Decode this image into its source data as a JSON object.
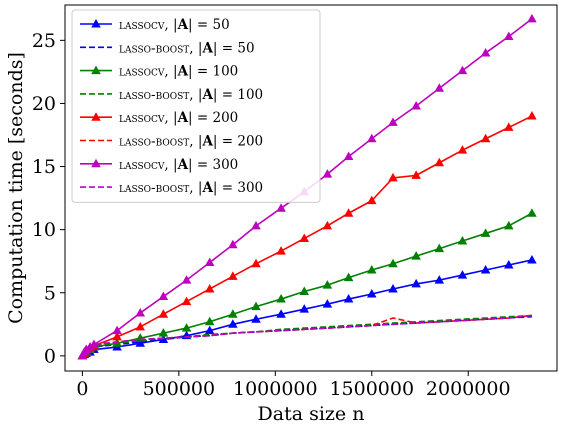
{
  "chart_data": {
    "type": "line",
    "xlabel": "Data size n",
    "ylabel": "Computation time [seconds]",
    "xlim": [
      -90000,
      2460000
    ],
    "ylim": [
      -1.2,
      27.8
    ],
    "xticks": [
      0,
      500000,
      1000000,
      1500000,
      2000000
    ],
    "xtick_labels": [
      "0",
      "500000",
      "1000000",
      "1500000",
      "2000000"
    ],
    "yticks": [
      0,
      5,
      10,
      15,
      20,
      25
    ],
    "ytick_labels": [
      "0",
      "5",
      "10",
      "15",
      "20",
      "25"
    ],
    "grid": false,
    "legend_position": "top-left",
    "x": [
      0,
      10000,
      20000,
      40000,
      60000,
      180000,
      300000,
      420000,
      540000,
      660000,
      780000,
      900000,
      1030000,
      1150000,
      1270000,
      1380000,
      1500000,
      1610000,
      1730000,
      1850000,
      1970000,
      2090000,
      2210000,
      2330000
    ],
    "series": [
      {
        "name": "LASSOCV, |A| = 50",
        "name_parts": [
          "LASSOCV",
          "50"
        ],
        "color": "#0000ff",
        "style": "solid-triangle",
        "values": [
          0.0,
          0.1,
          0.2,
          0.3,
          0.5,
          0.7,
          1.0,
          1.3,
          1.6,
          2.0,
          2.5,
          2.9,
          3.3,
          3.7,
          4.1,
          4.5,
          4.9,
          5.3,
          5.7,
          6.0,
          6.4,
          6.8,
          7.2,
          7.6
        ]
      },
      {
        "name": "LASSO-BOOST, |A| = 50",
        "name_parts": [
          "LASSO-BOOST",
          "50"
        ],
        "color": "#0000ff",
        "style": "dashed",
        "values": [
          0.0,
          0.3,
          0.5,
          0.6,
          0.7,
          0.9,
          1.1,
          1.3,
          1.5,
          1.6,
          1.8,
          1.9,
          2.0,
          2.1,
          2.2,
          2.3,
          2.4,
          2.5,
          2.6,
          2.7,
          2.8,
          2.9,
          3.0,
          3.1
        ]
      },
      {
        "name": "LASSOCV, |A| = 100",
        "name_parts": [
          "LASSOCV",
          "100"
        ],
        "color": "#008000",
        "style": "solid-triangle",
        "values": [
          0.0,
          0.15,
          0.3,
          0.5,
          0.7,
          1.0,
          1.4,
          1.8,
          2.2,
          2.7,
          3.3,
          3.9,
          4.5,
          5.1,
          5.6,
          6.2,
          6.8,
          7.3,
          7.9,
          8.5,
          9.1,
          9.7,
          10.3,
          11.3
        ]
      },
      {
        "name": "LASSO-BOOST, |A| = 100",
        "name_parts": [
          "LASSO-BOOST",
          "100"
        ],
        "color": "#008000",
        "style": "dashed",
        "values": [
          0.0,
          0.3,
          0.5,
          0.7,
          0.8,
          1.0,
          1.2,
          1.4,
          1.5,
          1.7,
          1.8,
          1.9,
          2.1,
          2.2,
          2.3,
          2.4,
          2.5,
          2.6,
          2.7,
          2.8,
          2.9,
          3.0,
          3.1,
          3.2
        ]
      },
      {
        "name": "LASSOCV, |A| = 200",
        "name_parts": [
          "LASSOCV",
          "200"
        ],
        "color": "#ff0000",
        "style": "solid-triangle",
        "values": [
          0.0,
          0.2,
          0.4,
          0.6,
          0.8,
          1.5,
          2.3,
          3.3,
          4.3,
          5.3,
          6.3,
          7.3,
          8.3,
          9.3,
          10.3,
          11.3,
          12.3,
          14.1,
          14.3,
          15.3,
          16.3,
          17.2,
          18.1,
          19.0
        ]
      },
      {
        "name": "LASSO-BOOST, |A| = 200",
        "name_parts": [
          "LASSO-BOOST",
          "200"
        ],
        "color": "#ff0000",
        "style": "dashed",
        "values": [
          0.0,
          0.35,
          0.6,
          0.8,
          0.9,
          1.1,
          1.3,
          1.4,
          1.5,
          1.6,
          1.8,
          1.9,
          2.0,
          2.1,
          2.2,
          2.3,
          2.4,
          3.0,
          2.6,
          2.7,
          2.8,
          2.9,
          3.0,
          3.2
        ]
      },
      {
        "name": "LASSOCV, |A| = 300",
        "name_parts": [
          "LASSOCV",
          "300"
        ],
        "color": "#bf00bf",
        "style": "solid-triangle",
        "values": [
          0.0,
          0.3,
          0.5,
          0.7,
          0.9,
          2.0,
          3.4,
          4.7,
          6.0,
          7.4,
          8.8,
          10.3,
          11.7,
          13.0,
          14.4,
          15.8,
          17.2,
          18.5,
          19.8,
          21.2,
          22.6,
          24.0,
          25.3,
          26.7
        ]
      },
      {
        "name": "LASSO-BOOST, |A| = 300",
        "name_parts": [
          "LASSO-BOOST",
          "300"
        ],
        "color": "#bf00bf",
        "style": "dashed",
        "values": [
          0.0,
          0.35,
          0.6,
          0.8,
          0.9,
          1.1,
          1.3,
          1.4,
          1.5,
          1.6,
          1.8,
          1.9,
          2.0,
          2.1,
          2.2,
          2.3,
          2.4,
          2.5,
          2.6,
          2.7,
          2.8,
          2.9,
          3.0,
          3.2
        ]
      }
    ]
  }
}
